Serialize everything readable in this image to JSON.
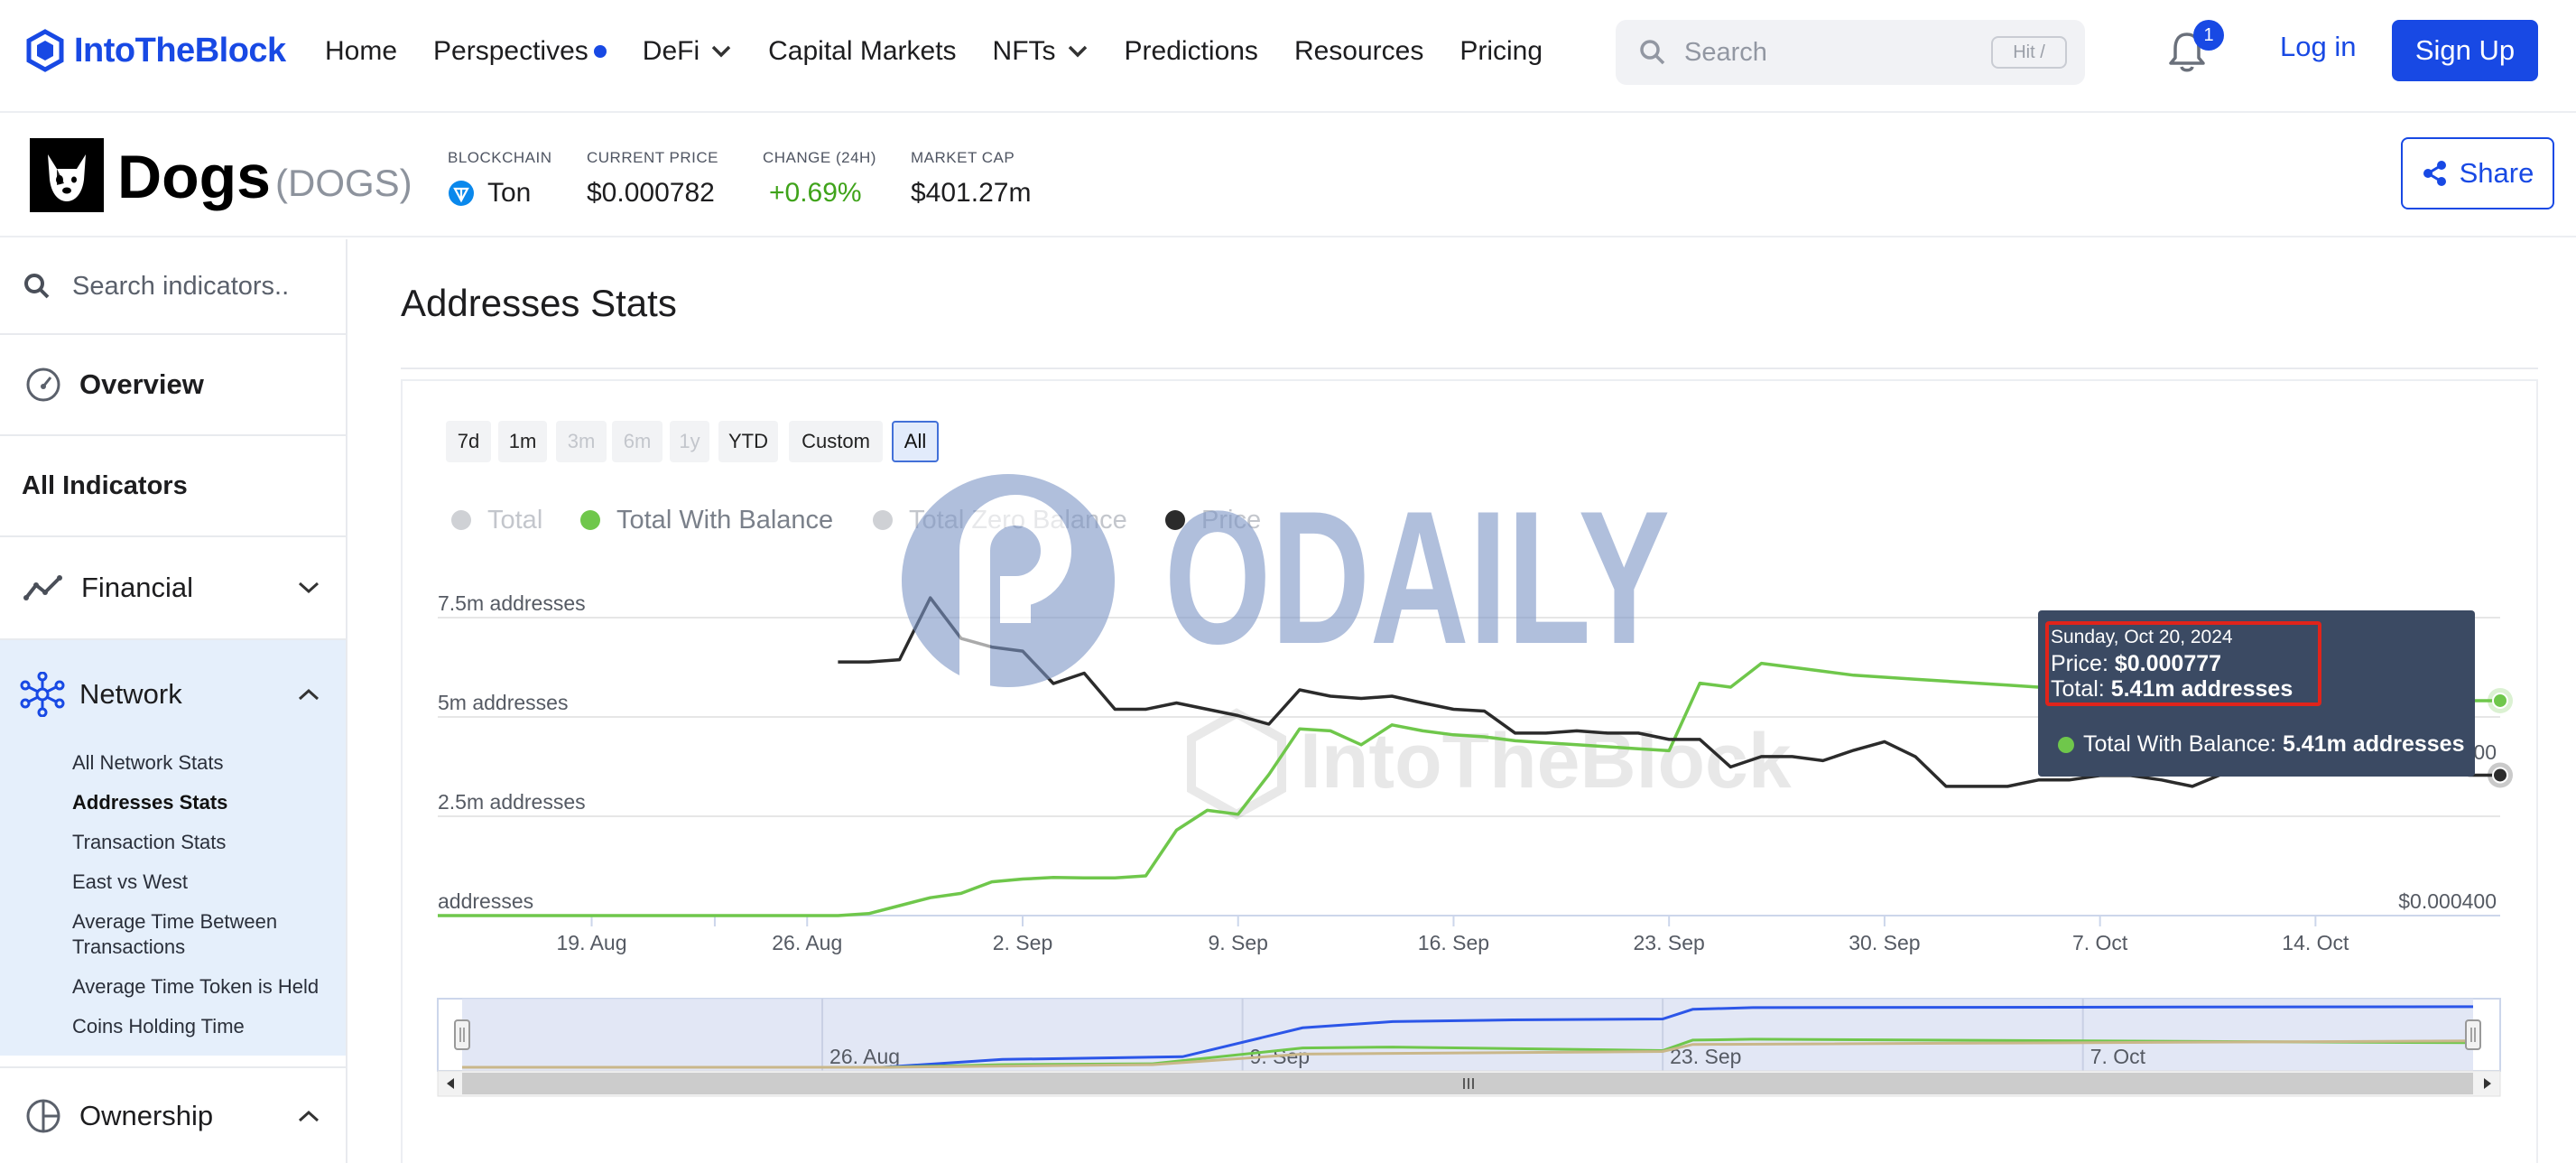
{
  "brand": {
    "name": "IntoTheBlock",
    "accent": "#1849e4"
  },
  "nav": {
    "items": [
      {
        "label": "Home"
      },
      {
        "label": "Perspectives",
        "dot": true
      },
      {
        "label": "DeFi",
        "dropdown": true
      },
      {
        "label": "Capital Markets"
      },
      {
        "label": "NFTs",
        "dropdown": true
      },
      {
        "label": "Predictions"
      },
      {
        "label": "Resources"
      },
      {
        "label": "Pricing"
      }
    ],
    "search_placeholder": "Search",
    "search_shortcut": "Hit /",
    "notifications_count": "1",
    "login_label": "Log in",
    "signup_label": "Sign Up"
  },
  "token": {
    "name": "Dogs",
    "symbol": "(DOGS)",
    "blockchain_label": "BLOCKCHAIN",
    "blockchain_value": "Ton",
    "price_label": "CURRENT PRICE",
    "price_value": "$0.000782",
    "change_label": "CHANGE (24H)",
    "change_value": "+0.69%",
    "change_color": "#3fa31a",
    "mcap_label": "MARKET CAP",
    "mcap_value": "$401.27m",
    "share_label": "Share"
  },
  "sidebar": {
    "search_placeholder": "Search indicators..",
    "overview_label": "Overview",
    "all_indicators_label": "All Indicators",
    "financial_label": "Financial",
    "network_label": "Network",
    "network_items": [
      "All Network Stats",
      "Addresses Stats",
      "Transaction Stats",
      "East vs West",
      "Average Time Between Transactions",
      "Average Time Token is Held",
      "Coins Holding Time"
    ],
    "network_active_index": 1,
    "ownership_label": "Ownership"
  },
  "main": {
    "title": "Addresses Stats",
    "ranges": [
      "7d",
      "1m",
      "3m",
      "6m",
      "1y",
      "YTD",
      "Custom",
      "All"
    ],
    "range_disabled": [
      "3m",
      "6m",
      "1y"
    ],
    "range_selected": "All"
  },
  "legend": [
    {
      "label": "Total",
      "color": "#cfd1d5",
      "text_color": "#c3c6cc"
    },
    {
      "label": "Total With Balance",
      "color": "#6fc74b",
      "text_color": "#7a808a"
    },
    {
      "label": "Total Zero Balance",
      "color": "#cfd1d5",
      "text_color": "#c3c6cc"
    },
    {
      "label": "Price",
      "color": "#2b2b2b",
      "text_color": "#c3c6cc"
    }
  ],
  "watermark": "ODAILY",
  "chart_watermark": "IntoTheBlock",
  "tooltip": {
    "date": "Sunday, Oct 20, 2024",
    "price_label": "Price: ",
    "price_value": "$0.000777",
    "total_label": "Total: ",
    "total_value": "5.41m addresses",
    "series_label": "Total With Balance: ",
    "series_value": "5.41m addresses"
  },
  "chart_data": {
    "type": "line",
    "x_tick_labels": [
      "19. Aug",
      "26. Aug",
      "2. Sep",
      "9. Sep",
      "16. Sep",
      "23. Sep",
      "30. Sep",
      "7. Oct",
      "14. Oct"
    ],
    "navigator_tick_labels": [
      "26. Aug",
      "9. Sep",
      "23. Sep",
      "7. Oct"
    ],
    "y_left_labels": [
      "7.5m addresses",
      "5m addresses",
      "2.5m addresses",
      "addresses"
    ],
    "y_left_values": [
      7500000,
      5000000,
      2500000,
      0
    ],
    "y_right_labels": [
      "$0.000800",
      "$0.000400"
    ],
    "y_right_values": [
      0.0008,
      0.0004
    ],
    "x_start": "2024-08-14",
    "x_end": "2024-10-20",
    "series": [
      {
        "name": "Total With Balance",
        "axis": "left",
        "color": "#6fc74b",
        "values": [
          [
            0,
            0
          ],
          [
            1,
            0
          ],
          [
            2,
            0
          ],
          [
            3,
            0
          ],
          [
            4,
            0
          ],
          [
            5,
            0
          ],
          [
            6,
            0
          ],
          [
            7,
            0
          ],
          [
            8,
            0
          ],
          [
            9,
            0
          ],
          [
            10,
            0
          ],
          [
            11,
            0
          ],
          [
            12,
            0
          ],
          [
            13,
            0
          ],
          [
            14,
            50000
          ],
          [
            15,
            250000
          ],
          [
            16,
            450000
          ],
          [
            17,
            560000
          ],
          [
            18,
            850000
          ],
          [
            19,
            920000
          ],
          [
            20,
            960000
          ],
          [
            21,
            950000
          ],
          [
            22,
            950000
          ],
          [
            23,
            1000000
          ],
          [
            24,
            2150000
          ],
          [
            25,
            2650000
          ],
          [
            26,
            2550000
          ],
          [
            27,
            3550000
          ],
          [
            28,
            4700000
          ],
          [
            29,
            4650000
          ],
          [
            30,
            4300000
          ],
          [
            31,
            4800000
          ],
          [
            32,
            4650000
          ],
          [
            33,
            4550000
          ],
          [
            34,
            4500000
          ],
          [
            35,
            4400000
          ],
          [
            36,
            4350000
          ],
          [
            37,
            4300000
          ],
          [
            38,
            4250000
          ],
          [
            39,
            4200000
          ],
          [
            40,
            4150000
          ],
          [
            41,
            5850000
          ],
          [
            42,
            5750000
          ],
          [
            43,
            6350000
          ],
          [
            44,
            6250000
          ],
          [
            45,
            6150000
          ],
          [
            46,
            6050000
          ],
          [
            47,
            6000000
          ],
          [
            48,
            5950000
          ],
          [
            49,
            5900000
          ],
          [
            50,
            5850000
          ],
          [
            51,
            5800000
          ],
          [
            52,
            5750000
          ],
          [
            53,
            5700000
          ],
          [
            54,
            5680000
          ],
          [
            55,
            5660000
          ],
          [
            56,
            5620000
          ],
          [
            57,
            5580000
          ],
          [
            58,
            5540000
          ],
          [
            59,
            5500000
          ],
          [
            60,
            5480000
          ],
          [
            61,
            5460000
          ],
          [
            62,
            5440000
          ],
          [
            63,
            5420000
          ],
          [
            64,
            5410000
          ],
          [
            65,
            5410000
          ],
          [
            66,
            5410000
          ],
          [
            67,
            5410000
          ]
        ]
      },
      {
        "name": "Price",
        "axis": "right",
        "color": "#2b2b2b",
        "values": [
          [
            13,
            0.001081
          ],
          [
            14,
            0.001081
          ],
          [
            15,
            0.001087
          ],
          [
            16,
            0.001253
          ],
          [
            17,
            0.001144
          ],
          [
            18,
            0.001121
          ],
          [
            19,
            0.00111
          ],
          [
            20,
            0.001023
          ],
          [
            21,
            0.001051
          ],
          [
            22,
            0.000954
          ],
          [
            23,
            0.000954
          ],
          [
            24,
            0.000971
          ],
          [
            25,
            0.000954
          ],
          [
            26,
            0.000937
          ],
          [
            27,
            0.000914
          ],
          [
            28,
            0.001006
          ],
          [
            29,
            0.000989
          ],
          [
            30,
            0.000983
          ],
          [
            31,
            0.000989
          ],
          [
            32,
            0.000971
          ],
          [
            33,
            0.000954
          ],
          [
            34,
            0.000949
          ],
          [
            35,
            0.00089
          ],
          [
            36,
            0.00089
          ],
          [
            37,
            0.000896
          ],
          [
            38,
            0.00089
          ],
          [
            39,
            0.00089
          ],
          [
            40,
            0.000873
          ],
          [
            41,
            0.000873
          ],
          [
            42,
            0.000799
          ],
          [
            43,
            0.000827
          ],
          [
            44,
            0.000827
          ],
          [
            45,
            0.000816
          ],
          [
            46,
            0.000844
          ],
          [
            47,
            0.000867
          ],
          [
            48,
            0.000827
          ],
          [
            49,
            0.000747
          ],
          [
            50,
            0.000747
          ],
          [
            51,
            0.000747
          ],
          [
            52,
            0.000764
          ],
          [
            53,
            0.000764
          ],
          [
            54,
            0.000776
          ],
          [
            55,
            0.000776
          ],
          [
            56,
            0.000764
          ],
          [
            57,
            0.000747
          ],
          [
            58,
            0.000781
          ],
          [
            59,
            0.000833
          ],
          [
            60,
            0.000816
          ],
          [
            61,
            0.000833
          ],
          [
            62,
            0.000804
          ],
          [
            63,
            0.000781
          ],
          [
            64,
            0.000793
          ],
          [
            65,
            0.000788
          ],
          [
            66,
            0.000777
          ],
          [
            67,
            0.000777
          ]
        ]
      }
    ],
    "navigator_series": [
      {
        "name": "Total",
        "color": "#2c56e8",
        "values": [
          [
            0,
            0
          ],
          [
            14,
            0
          ],
          [
            18,
            900000
          ],
          [
            24,
            1200000
          ],
          [
            28,
            4500000
          ],
          [
            31,
            5200000
          ],
          [
            35,
            5400000
          ],
          [
            40,
            5500000
          ],
          [
            41,
            6600000
          ],
          [
            43,
            6800000
          ],
          [
            67,
            6900000
          ]
        ]
      },
      {
        "name": "Total With Balance",
        "color": "#6fc74b",
        "values": [
          [
            0,
            0
          ],
          [
            14,
            0
          ],
          [
            18,
            300000
          ],
          [
            23,
            400000
          ],
          [
            28,
            2200000
          ],
          [
            31,
            2300000
          ],
          [
            40,
            1900000
          ],
          [
            41,
            3100000
          ],
          [
            43,
            3200000
          ],
          [
            67,
            2800000
          ]
        ]
      },
      {
        "name": "Total Zero Balance",
        "color": "#c9b78a",
        "values": [
          [
            0,
            0
          ],
          [
            14,
            0
          ],
          [
            23,
            300000
          ],
          [
            28,
            1500000
          ],
          [
            40,
            1800000
          ],
          [
            41,
            2600000
          ],
          [
            67,
            3000000
          ]
        ]
      }
    ]
  }
}
